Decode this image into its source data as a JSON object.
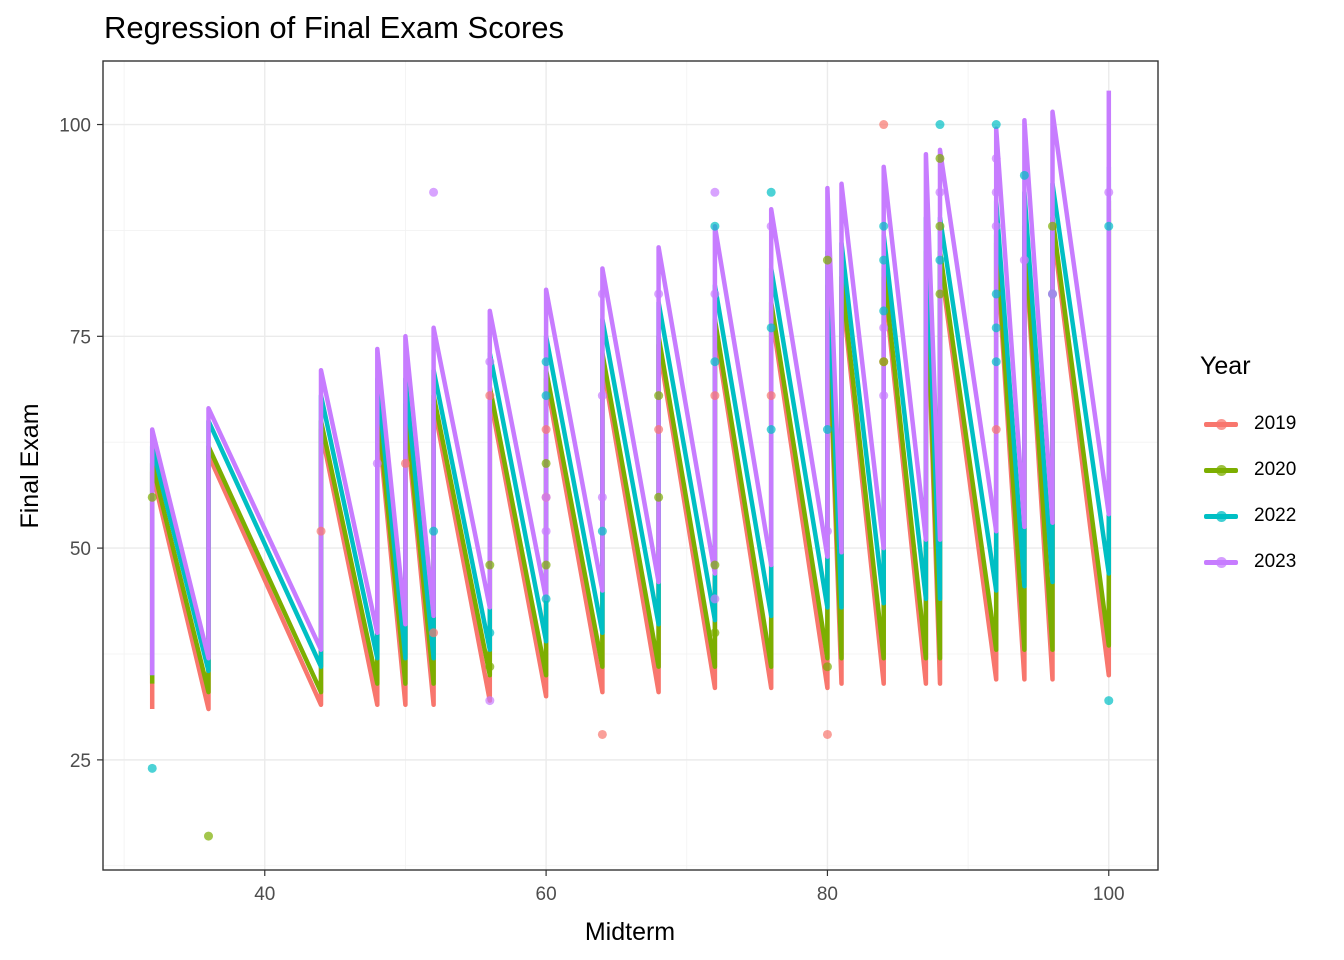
{
  "chart_data": {
    "type": "line",
    "title": "Regression of Final Exam Scores",
    "xlabel": "Midterm",
    "ylabel": "Final Exam",
    "xlim": [
      28.5,
      103.5
    ],
    "ylim": [
      12,
      107.5
    ],
    "x_ticks": [
      40,
      60,
      80,
      100
    ],
    "x_tick_labels": [
      "40",
      "60",
      "80",
      "100"
    ],
    "y_ticks": [
      25,
      50,
      75,
      100
    ],
    "y_tick_labels": [
      "25",
      "50",
      "75",
      "100"
    ],
    "grid": true,
    "legend_title": "Year",
    "legend_position": "right",
    "x": [
      32,
      36,
      44,
      48,
      50,
      52,
      56,
      60,
      64,
      68,
      72,
      76,
      80,
      81,
      84,
      87,
      88,
      92,
      94,
      96,
      100
    ],
    "series": [
      {
        "name": "2019",
        "color": "#F8766D",
        "fit_top": [
          59,
          61,
          64,
          66,
          66,
          67,
          68,
          70,
          72,
          74,
          76,
          78,
          80,
          81,
          82,
          84,
          84,
          86,
          87,
          88,
          90
        ],
        "fit_bottom": [
          31,
          31,
          31.5,
          31.5,
          31.5,
          31.5,
          32,
          32.5,
          33,
          33,
          33.5,
          33.5,
          33.5,
          34,
          34,
          34,
          34,
          34.5,
          34.5,
          34.5,
          35
        ],
        "points": [
          [
            84,
            100
          ],
          [
            64,
            28
          ],
          [
            80,
            28
          ],
          [
            50,
            60
          ],
          [
            44,
            52
          ],
          [
            56,
            68
          ],
          [
            60,
            64
          ],
          [
            68,
            64
          ],
          [
            72,
            68
          ],
          [
            76,
            68
          ],
          [
            84,
            72
          ],
          [
            92,
            64
          ],
          [
            96,
            80
          ],
          [
            52,
            40
          ],
          [
            60,
            56
          ]
        ]
      },
      {
        "name": "2020",
        "color": "#7CAE00",
        "fit_top": [
          60,
          62,
          65,
          67,
          67,
          68,
          69,
          71,
          73,
          75,
          77,
          79,
          81,
          82,
          83,
          85,
          85,
          87,
          88,
          89,
          91
        ],
        "fit_bottom": [
          34,
          33,
          33,
          34,
          34,
          34,
          35,
          35,
          36,
          36,
          36,
          36,
          37,
          37,
          37,
          37,
          37,
          38,
          38,
          38,
          38.5
        ],
        "points": [
          [
            36,
            16
          ],
          [
            32,
            56
          ],
          [
            56,
            48
          ],
          [
            60,
            60
          ],
          [
            68,
            56
          ],
          [
            68,
            68
          ],
          [
            72,
            48
          ],
          [
            72,
            40
          ],
          [
            80,
            84
          ],
          [
            84,
            72
          ],
          [
            88,
            96
          ],
          [
            88,
            88
          ],
          [
            88,
            80
          ],
          [
            96,
            88
          ],
          [
            60,
            48
          ],
          [
            56,
            36
          ],
          [
            80,
            36
          ]
        ]
      },
      {
        "name": "2022",
        "color": "#00BFC4",
        "fit_top": [
          62,
          65,
          68,
          70,
          70,
          71,
          73,
          75,
          77,
          79,
          81,
          83,
          85,
          86,
          87,
          89,
          89,
          91,
          92,
          93,
          95
        ],
        "fit_bottom": [
          35,
          35.5,
          36,
          37,
          37,
          37,
          38,
          39,
          40,
          41,
          41.5,
          42,
          43,
          43,
          43.5,
          44,
          44,
          45,
          45.5,
          46,
          47
        ],
        "points": [
          [
            32,
            24
          ],
          [
            100,
            32
          ],
          [
            88,
            100
          ],
          [
            92,
            100
          ],
          [
            76,
            92
          ],
          [
            72,
            88
          ],
          [
            84,
            88
          ],
          [
            100,
            88
          ],
          [
            60,
            72
          ],
          [
            72,
            72
          ],
          [
            76,
            76
          ],
          [
            84,
            84
          ],
          [
            84,
            78
          ],
          [
            88,
            84
          ],
          [
            92,
            80
          ],
          [
            92,
            76
          ],
          [
            92,
            72
          ],
          [
            94,
            94
          ],
          [
            96,
            80
          ],
          [
            60,
            68
          ],
          [
            64,
            52
          ],
          [
            52,
            52
          ],
          [
            76,
            64
          ],
          [
            80,
            64
          ],
          [
            56,
            40
          ],
          [
            60,
            44
          ]
        ]
      },
      {
        "name": "2023",
        "color": "#C77CFF",
        "fit_top": [
          64,
          66.5,
          71,
          73.5,
          75,
          76,
          78,
          80.5,
          83,
          85.5,
          88,
          90,
          92.5,
          93,
          95,
          96.5,
          97,
          99.5,
          100.5,
          101.5,
          104
        ],
        "fit_bottom": [
          35,
          37,
          38,
          40,
          41,
          42,
          43,
          44,
          45,
          46,
          47,
          48,
          49,
          49.5,
          50,
          51,
          51,
          52,
          52.5,
          53,
          54
        ],
        "points": [
          [
            52,
            92
          ],
          [
            72,
            92
          ],
          [
            100,
            92
          ],
          [
            56,
            32
          ],
          [
            56,
            72
          ],
          [
            48,
            60
          ],
          [
            64,
            80
          ],
          [
            68,
            80
          ],
          [
            72,
            80
          ],
          [
            64,
            68
          ],
          [
            84,
            76
          ],
          [
            84,
            68
          ],
          [
            76,
            88
          ],
          [
            92,
            96
          ],
          [
            92,
            92
          ],
          [
            92,
            88
          ],
          [
            94,
            84
          ],
          [
            60,
            56
          ],
          [
            60,
            52
          ],
          [
            64,
            56
          ],
          [
            72,
            44
          ],
          [
            80,
            52
          ],
          [
            88,
            92
          ],
          [
            96,
            80
          ]
        ]
      }
    ]
  }
}
